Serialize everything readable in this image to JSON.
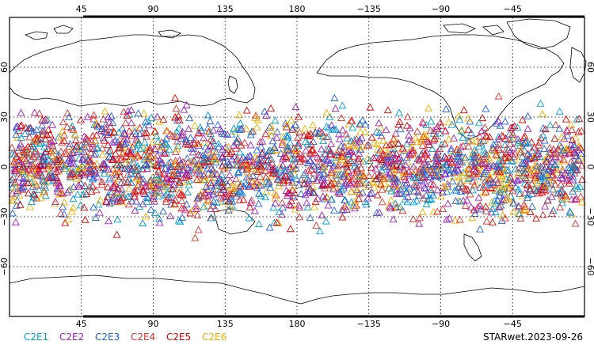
{
  "map": {
    "top_ticks": [
      {
        "lon": 45,
        "label": "45"
      },
      {
        "lon": 90,
        "label": "90"
      },
      {
        "lon": 135,
        "label": "135"
      },
      {
        "lon": 180,
        "label": "180"
      },
      {
        "lon": 225,
        "label": "−135"
      },
      {
        "lon": 270,
        "label": "−90"
      },
      {
        "lon": 315,
        "label": "−45"
      }
    ],
    "bottom_ticks": [
      {
        "lon": 45,
        "label": "45"
      },
      {
        "lon": 90,
        "label": "90"
      },
      {
        "lon": 135,
        "label": "135"
      },
      {
        "lon": 180,
        "label": "180"
      },
      {
        "lon": 225,
        "label": "−135"
      },
      {
        "lon": 270,
        "label": "−90"
      },
      {
        "lon": 315,
        "label": "−45"
      }
    ],
    "lat_ticks": [
      {
        "lat": 60,
        "label": "60"
      },
      {
        "lat": 30,
        "label": "30"
      },
      {
        "lat": 0,
        "label": "0"
      },
      {
        "lat": -30,
        "label": "−30"
      },
      {
        "lat": -60,
        "label": "−60"
      }
    ],
    "lon_range": [
      0,
      360
    ],
    "lat_range": [
      -90,
      90
    ],
    "gridlines": true
  },
  "legend": [
    {
      "name": "C2E1",
      "color": "#00a0d0"
    },
    {
      "name": "C2E2",
      "color": "#a020c0"
    },
    {
      "name": "C2E3",
      "color": "#2060e0"
    },
    {
      "name": "C2E4",
      "color": "#e03030"
    },
    {
      "name": "C2E5",
      "color": "#e00000"
    },
    {
      "name": "C2E6",
      "color": "#f0b000"
    }
  ],
  "footer": {
    "label": "STARwet.2023-09-26"
  },
  "observations": {
    "marker": "triangle-outline",
    "lat_band": [
      -45,
      45
    ],
    "series_colors": [
      "#00a0d0",
      "#a020c0",
      "#2060e0",
      "#e03030",
      "#e00000",
      "#f0b000"
    ]
  }
}
